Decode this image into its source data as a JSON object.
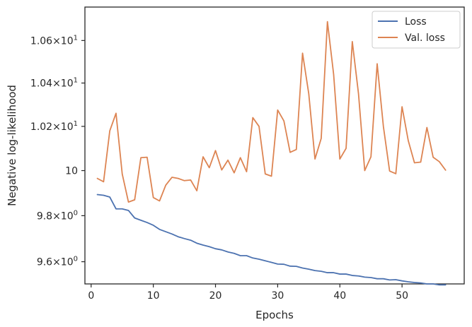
{
  "chart_data": {
    "type": "line",
    "xlabel": "Epochs",
    "ylabel": "Negative log-likelihood",
    "xlim": [
      -1,
      60
    ],
    "ylim": [
      9.505,
      10.76
    ],
    "yscale": "log",
    "grid": false,
    "legend_placement": "top-right",
    "x_ticks": [
      {
        "value": 0,
        "label": "0"
      },
      {
        "value": 10,
        "label": "10"
      },
      {
        "value": 20,
        "label": "20"
      },
      {
        "value": 30,
        "label": "30"
      },
      {
        "value": 40,
        "label": "40"
      },
      {
        "value": 50,
        "label": "50"
      }
    ],
    "y_ticks": [
      {
        "value": 9.6,
        "base": "9.6",
        "exp": "0"
      },
      {
        "value": 9.8,
        "base": "9.8",
        "exp": "0"
      },
      {
        "value": 10.0,
        "base": "10",
        "exp": ""
      },
      {
        "value": 10.2,
        "base": "1.02",
        "exp": "1"
      },
      {
        "value": 10.4,
        "base": "1.04",
        "exp": "1"
      },
      {
        "value": 10.6,
        "base": "1.06",
        "exp": "1"
      }
    ],
    "series": [
      {
        "name": "Loss",
        "color": "#4c72b0",
        "x": [
          1,
          2,
          3,
          4,
          5,
          6,
          7,
          8,
          9,
          10,
          11,
          12,
          13,
          14,
          15,
          16,
          17,
          18,
          19,
          20,
          21,
          22,
          23,
          24,
          25,
          26,
          27,
          28,
          29,
          30,
          31,
          32,
          33,
          34,
          35,
          36,
          37,
          38,
          39,
          40,
          41,
          42,
          43,
          44,
          45,
          46,
          47,
          48,
          49,
          50,
          51,
          52,
          53,
          54,
          55,
          56,
          57
        ],
        "values": [
          9.893,
          9.89,
          9.882,
          9.83,
          9.83,
          9.823,
          9.79,
          9.78,
          9.77,
          9.758,
          9.74,
          9.73,
          9.72,
          9.708,
          9.7,
          9.693,
          9.68,
          9.672,
          9.665,
          9.656,
          9.651,
          9.642,
          9.636,
          9.626,
          9.626,
          9.616,
          9.611,
          9.604,
          9.597,
          9.59,
          9.589,
          9.581,
          9.58,
          9.573,
          9.568,
          9.562,
          9.559,
          9.553,
          9.553,
          9.547,
          9.547,
          9.541,
          9.539,
          9.534,
          9.532,
          9.527,
          9.527,
          9.522,
          9.523,
          9.518,
          9.514,
          9.511,
          9.509,
          9.505,
          9.505,
          9.501,
          9.501
        ]
      },
      {
        "name": "Val. loss",
        "color": "#dd8452",
        "x": [
          1,
          2,
          3,
          4,
          5,
          6,
          7,
          8,
          9,
          10,
          11,
          12,
          13,
          14,
          15,
          16,
          17,
          18,
          19,
          20,
          21,
          22,
          23,
          24,
          25,
          26,
          27,
          28,
          29,
          30,
          31,
          32,
          33,
          34,
          35,
          36,
          37,
          38,
          39,
          40,
          41,
          42,
          43,
          44,
          45,
          46,
          47,
          48,
          49,
          50,
          51,
          52,
          53,
          54,
          55,
          56,
          57
        ],
        "values": [
          9.965,
          9.95,
          10.18,
          10.26,
          9.985,
          9.86,
          9.87,
          10.058,
          10.06,
          9.88,
          9.865,
          9.935,
          9.97,
          9.965,
          9.955,
          9.958,
          9.91,
          10.062,
          10.013,
          10.09,
          10.003,
          10.047,
          9.99,
          10.058,
          9.995,
          10.24,
          10.2,
          9.985,
          9.975,
          10.275,
          10.225,
          10.082,
          10.095,
          10.54,
          10.35,
          10.052,
          10.145,
          10.69,
          10.44,
          10.052,
          10.1,
          10.595,
          10.35,
          10.0,
          10.062,
          10.49,
          10.2,
          9.998,
          9.986,
          10.29,
          10.135,
          10.035,
          10.038,
          10.195,
          10.06,
          10.04,
          10.002
        ]
      }
    ]
  }
}
